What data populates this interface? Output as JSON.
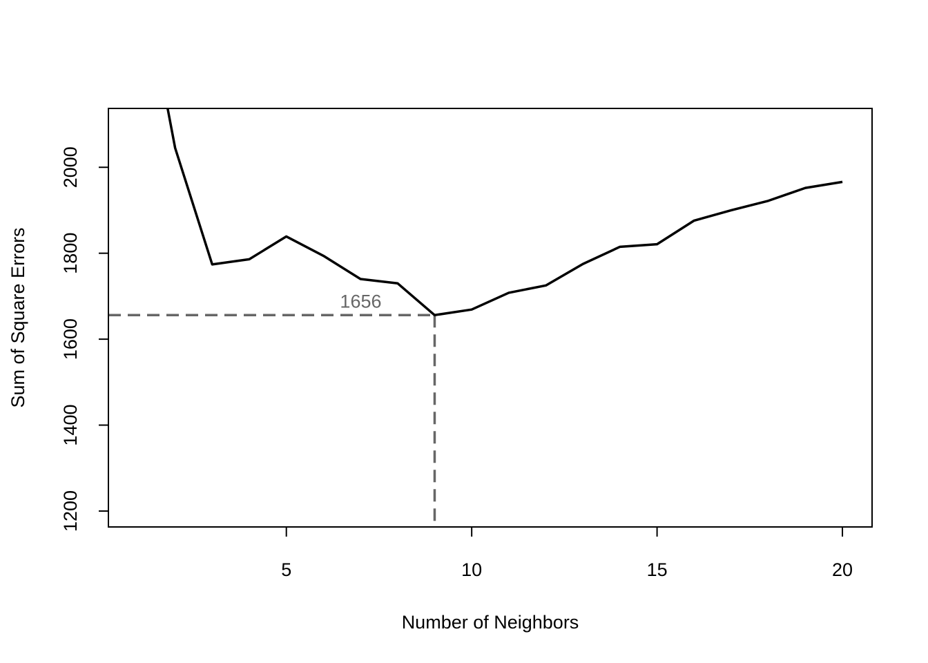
{
  "chart_data": {
    "type": "line",
    "title": "",
    "xlabel": "Number of Neighbors",
    "ylabel": "Sum of Square Errors",
    "xlim": [
      0.2,
      20.8
    ],
    "ylim": [
      1163,
      2137
    ],
    "x_ticks": [
      5,
      10,
      15,
      20
    ],
    "y_ticks": [
      1200,
      1400,
      1600,
      1800,
      2000
    ],
    "grid": false,
    "legend": "none",
    "series": [
      {
        "x": [
          1,
          2,
          3,
          4,
          5,
          6,
          7,
          8,
          9,
          10,
          11,
          12,
          13,
          14,
          15,
          16,
          17,
          18,
          19,
          20
        ],
        "y": [
          2500,
          2045,
          1774,
          1786,
          1839,
          1794,
          1740,
          1730,
          1656,
          1669,
          1708,
          1725,
          1775,
          1815,
          1821,
          1876,
          1900,
          1922,
          1952,
          1966
        ]
      }
    ],
    "annotation": {
      "label": "1656",
      "x": 9,
      "y": 1656,
      "color": "#666666"
    },
    "line_color": "#000000"
  }
}
